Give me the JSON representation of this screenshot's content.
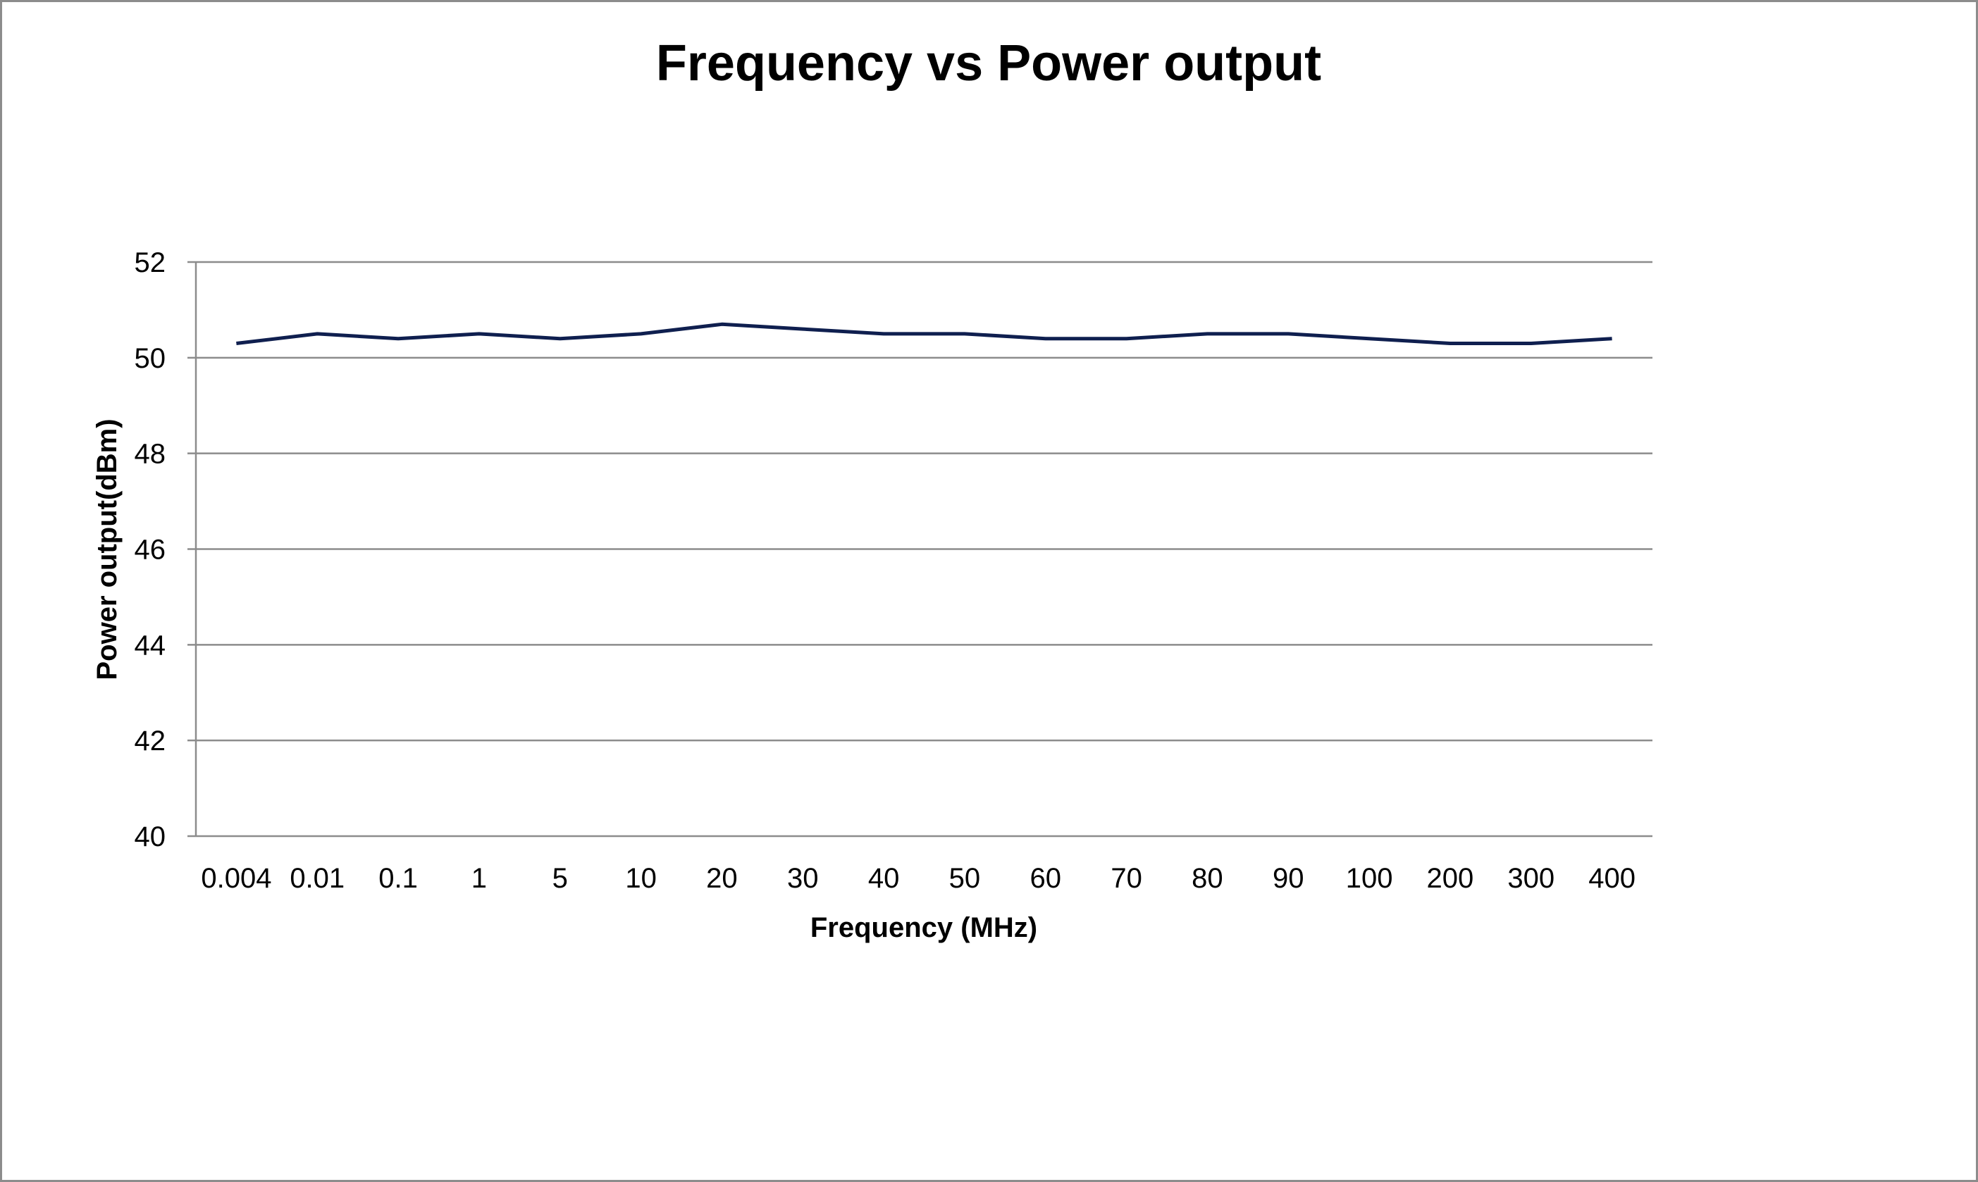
{
  "chart_data": {
    "type": "line",
    "title": "Frequency vs Power output",
    "xlabel": "Frequency (MHz)",
    "ylabel": "Power output(dBm)",
    "categories": [
      "0.004",
      "0.01",
      "0.1",
      "1",
      "5",
      "10",
      "20",
      "30",
      "40",
      "50",
      "60",
      "70",
      "80",
      "90",
      "100",
      "200",
      "300",
      "400"
    ],
    "series": [
      {
        "values": [
          50.3,
          50.5,
          50.4,
          50.5,
          50.4,
          50.5,
          50.7,
          50.6,
          50.5,
          50.5,
          50.4,
          50.4,
          50.5,
          50.5,
          50.4,
          50.3,
          50.3,
          50.4
        ],
        "color": "#0f1f4f"
      }
    ],
    "ylim": [
      40,
      52
    ],
    "yticks": [
      40,
      42,
      44,
      46,
      48,
      50,
      52
    ],
    "grid": true,
    "legend": "none"
  }
}
